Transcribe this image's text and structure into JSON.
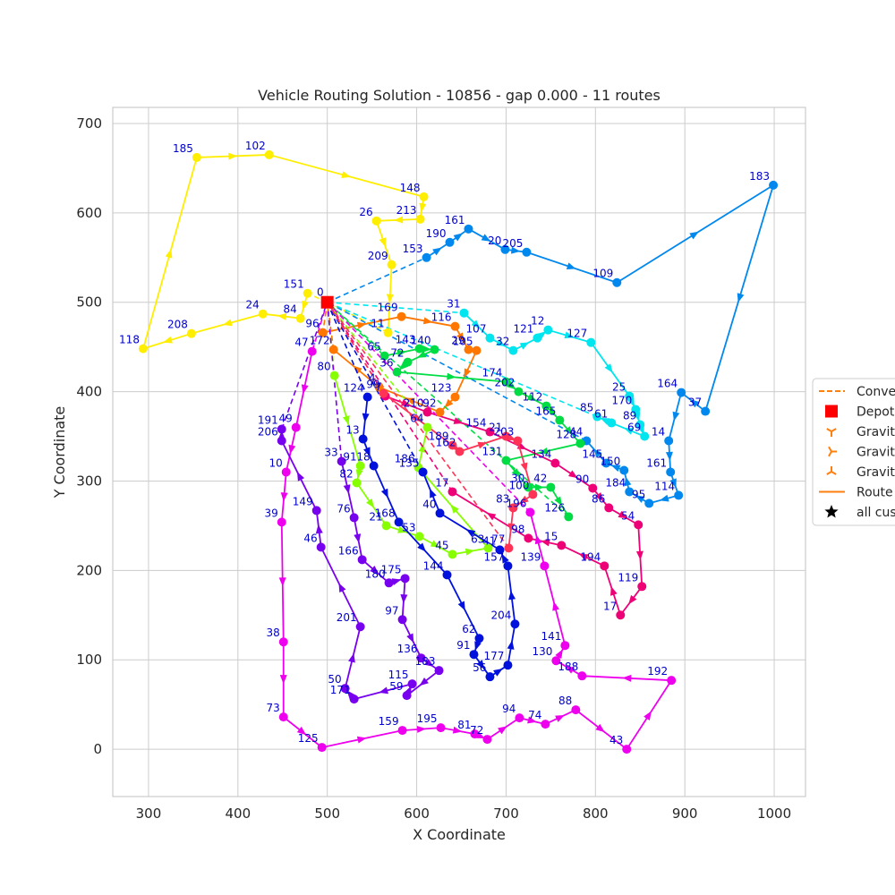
{
  "chart_data": {
    "type": "scatter",
    "title": "Vehicle Routing Solution - 10856 - gap 0.000 - 11 routes",
    "xlabel": "X Coordinate",
    "ylabel": "Y Coordinate",
    "xlim": [
      260,
      1035
    ],
    "ylim": [
      -53,
      718
    ],
    "xticks": [
      300,
      400,
      500,
      600,
      700,
      800,
      900,
      1000
    ],
    "yticks": [
      0,
      100,
      200,
      300,
      400,
      500,
      600,
      700
    ],
    "grid": true,
    "legend_position": "right (clipped)",
    "legend": [
      {
        "label": "Conve",
        "kind": "dashed-line",
        "color": "#ff7f0e"
      },
      {
        "label": "Depot",
        "kind": "square",
        "color": "#ff0000"
      },
      {
        "label": "Gravit",
        "kind": "tri-down",
        "color": "#ff7f0e"
      },
      {
        "label": "Gravit",
        "kind": "tri-left",
        "color": "#ff7f0e"
      },
      {
        "label": "Gravit",
        "kind": "tri-up",
        "color": "#ff7f0e"
      },
      {
        "label": "Route",
        "kind": "line",
        "color": "#ff7f0e"
      },
      {
        "label": "all cus",
        "kind": "star",
        "color": "#000000"
      }
    ],
    "depot": {
      "label": "0",
      "x": 500,
      "y": 500
    },
    "routes": [
      {
        "color": "#ffee00",
        "stops": [
          {
            "id": "151",
            "x": 478,
            "y": 510
          },
          {
            "id": "84",
            "x": 470,
            "y": 482
          },
          {
            "id": "24",
            "x": 428,
            "y": 487
          },
          {
            "id": "208",
            "x": 348,
            "y": 465
          },
          {
            "id": "118",
            "x": 294,
            "y": 448
          },
          {
            "id": "185",
            "x": 354,
            "y": 662
          },
          {
            "id": "102",
            "x": 435,
            "y": 665
          },
          {
            "id": "148",
            "x": 608,
            "y": 618
          },
          {
            "id": "213",
            "x": 604,
            "y": 593
          },
          {
            "id": "26",
            "x": 555,
            "y": 591
          },
          {
            "id": "209",
            "x": 572,
            "y": 542
          },
          {
            "id": "11",
            "x": 568,
            "y": 466
          }
        ]
      },
      {
        "color": "#0088ee",
        "stops": [
          {
            "id": "153",
            "x": 611,
            "y": 550
          },
          {
            "id": "190",
            "x": 637,
            "y": 567
          },
          {
            "id": "161",
            "x": 658,
            "y": 582
          },
          {
            "id": "20",
            "x": 699,
            "y": 559
          },
          {
            "id": "205",
            "x": 723,
            "y": 556
          },
          {
            "id": "109",
            "x": 824,
            "y": 522
          },
          {
            "id": "183",
            "x": 999,
            "y": 631
          },
          {
            "id": "37",
            "x": 923,
            "y": 378
          },
          {
            "id": "164",
            "x": 896,
            "y": 399
          },
          {
            "id": "14",
            "x": 882,
            "y": 345
          },
          {
            "id": "161b",
            "x": 884,
            "y": 310
          },
          {
            "id": "114",
            "x": 893,
            "y": 284
          },
          {
            "id": "95",
            "x": 860,
            "y": 275
          },
          {
            "id": "184",
            "x": 838,
            "y": 288
          },
          {
            "id": "150",
            "x": 832,
            "y": 312
          },
          {
            "id": "145",
            "x": 812,
            "y": 320
          },
          {
            "id": "44",
            "x": 790,
            "y": 345
          }
        ]
      },
      {
        "color": "#00e5ee",
        "stops": [
          {
            "id": "31",
            "x": 653,
            "y": 488
          },
          {
            "id": "107",
            "x": 682,
            "y": 460
          },
          {
            "id": "32",
            "x": 708,
            "y": 446
          },
          {
            "id": "121",
            "x": 735,
            "y": 460
          },
          {
            "id": "12",
            "x": 747,
            "y": 469
          },
          {
            "id": "127",
            "x": 795,
            "y": 455
          },
          {
            "id": "25",
            "x": 838,
            "y": 395
          },
          {
            "id": "170",
            "x": 845,
            "y": 380
          },
          {
            "id": "89",
            "x": 850,
            "y": 363
          },
          {
            "id": "69",
            "x": 855,
            "y": 350
          },
          {
            "id": "61",
            "x": 818,
            "y": 365
          },
          {
            "id": "85",
            "x": 802,
            "y": 372
          }
        ]
      },
      {
        "color": "#ff7700",
        "stops": [
          {
            "id": "96",
            "x": 495,
            "y": 466
          },
          {
            "id": "169",
            "x": 583,
            "y": 484
          },
          {
            "id": "116",
            "x": 643,
            "y": 473
          },
          {
            "id": "29",
            "x": 658,
            "y": 447
          },
          {
            "id": "105",
            "x": 667,
            "y": 446
          },
          {
            "id": "123",
            "x": 643,
            "y": 394
          },
          {
            "id": "92",
            "x": 626,
            "y": 377
          },
          {
            "id": "4",
            "x": 558,
            "y": 405
          },
          {
            "id": "172",
            "x": 507,
            "y": 447
          }
        ]
      },
      {
        "color": "#00dd44",
        "stops": [
          {
            "id": "65",
            "x": 564,
            "y": 440
          },
          {
            "id": "143",
            "x": 603,
            "y": 448
          },
          {
            "id": "140",
            "x": 620,
            "y": 447
          },
          {
            "id": "72",
            "x": 590,
            "y": 433
          },
          {
            "id": "36",
            "x": 578,
            "y": 422
          },
          {
            "id": "174",
            "x": 700,
            "y": 411
          },
          {
            "id": "202",
            "x": 714,
            "y": 400
          },
          {
            "id": "112",
            "x": 745,
            "y": 384
          },
          {
            "id": "165",
            "x": 760,
            "y": 368
          },
          {
            "id": "128",
            "x": 783,
            "y": 342
          },
          {
            "id": "131",
            "x": 700,
            "y": 323
          },
          {
            "id": "30",
            "x": 725,
            "y": 293
          },
          {
            "id": "42",
            "x": 750,
            "y": 293
          },
          {
            "id": "126",
            "x": 770,
            "y": 260
          }
        ]
      },
      {
        "color": "#88ff00",
        "stops": [
          {
            "id": "80",
            "x": 508,
            "y": 418
          },
          {
            "id": "91",
            "x": 537,
            "y": 317
          },
          {
            "id": "82",
            "x": 533,
            "y": 298
          },
          {
            "id": "21",
            "x": 566,
            "y": 250
          },
          {
            "id": "53",
            "x": 603,
            "y": 238
          },
          {
            "id": "45",
            "x": 640,
            "y": 218
          },
          {
            "id": "63",
            "x": 680,
            "y": 225
          },
          {
            "id": "186",
            "x": 602,
            "y": 315
          },
          {
            "id": "64",
            "x": 612,
            "y": 360
          }
        ]
      },
      {
        "color": "#0011dd",
        "stops": [
          {
            "id": "124",
            "x": 545,
            "y": 394
          },
          {
            "id": "13",
            "x": 540,
            "y": 347
          },
          {
            "id": "18",
            "x": 552,
            "y": 317
          },
          {
            "id": "168",
            "x": 580,
            "y": 254
          },
          {
            "id": "144",
            "x": 634,
            "y": 195
          },
          {
            "id": "62",
            "x": 670,
            "y": 124
          },
          {
            "id": "91b",
            "x": 664,
            "y": 106
          },
          {
            "id": "56",
            "x": 682,
            "y": 81
          },
          {
            "id": "177",
            "x": 702,
            "y": 94
          },
          {
            "id": "204",
            "x": 710,
            "y": 140
          },
          {
            "id": "157",
            "x": 702,
            "y": 205
          },
          {
            "id": "41",
            "x": 693,
            "y": 223
          },
          {
            "id": "40",
            "x": 626,
            "y": 264
          },
          {
            "id": "135",
            "x": 607,
            "y": 310
          }
        ]
      },
      {
        "color": "#ee0077",
        "stops": [
          {
            "id": "7",
            "x": 565,
            "y": 395
          },
          {
            "id": "210",
            "x": 612,
            "y": 377
          },
          {
            "id": "154",
            "x": 682,
            "y": 355
          },
          {
            "id": "134",
            "x": 755,
            "y": 320
          },
          {
            "id": "90",
            "x": 797,
            "y": 292
          },
          {
            "id": "86",
            "x": 815,
            "y": 270
          },
          {
            "id": "54",
            "x": 848,
            "y": 251
          },
          {
            "id": "119",
            "x": 852,
            "y": 182
          },
          {
            "id": "17",
            "x": 828,
            "y": 150
          },
          {
            "id": "194",
            "x": 810,
            "y": 205
          },
          {
            "id": "15",
            "x": 762,
            "y": 228
          },
          {
            "id": "98",
            "x": 725,
            "y": 236
          },
          {
            "id": "17b",
            "x": 640,
            "y": 288
          }
        ]
      },
      {
        "color": "#ee00ee",
        "stops": [
          {
            "id": "47",
            "x": 483,
            "y": 445
          },
          {
            "id": "49",
            "x": 465,
            "y": 360
          },
          {
            "id": "10",
            "x": 454,
            "y": 310
          },
          {
            "id": "39",
            "x": 449,
            "y": 254
          },
          {
            "id": "38",
            "x": 451,
            "y": 120
          },
          {
            "id": "73",
            "x": 451,
            "y": 36
          },
          {
            "id": "125",
            "x": 494,
            "y": 2
          },
          {
            "id": "159",
            "x": 584,
            "y": 21
          },
          {
            "id": "195",
            "x": 627,
            "y": 24
          },
          {
            "id": "81",
            "x": 665,
            "y": 17
          },
          {
            "id": "72b",
            "x": 679,
            "y": 11
          },
          {
            "id": "94",
            "x": 715,
            "y": 35
          },
          {
            "id": "74",
            "x": 744,
            "y": 28
          },
          {
            "id": "88",
            "x": 778,
            "y": 44
          },
          {
            "id": "43",
            "x": 835,
            "y": 0
          },
          {
            "id": "192",
            "x": 885,
            "y": 77
          },
          {
            "id": "188",
            "x": 785,
            "y": 82
          },
          {
            "id": "130",
            "x": 756,
            "y": 99
          },
          {
            "id": "141",
            "x": 766,
            "y": 116
          },
          {
            "id": "139",
            "x": 743,
            "y": 205
          },
          {
            "id": "196",
            "x": 727,
            "y": 265
          }
        ]
      },
      {
        "color": "#7700ee",
        "stops": [
          {
            "id": "33",
            "x": 516,
            "y": 322
          },
          {
            "id": "76",
            "x": 530,
            "y": 259
          },
          {
            "id": "166",
            "x": 539,
            "y": 212
          },
          {
            "id": "180",
            "x": 569,
            "y": 186
          },
          {
            "id": "175",
            "x": 587,
            "y": 191
          },
          {
            "id": "97",
            "x": 584,
            "y": 145
          },
          {
            "id": "136",
            "x": 605,
            "y": 102
          },
          {
            "id": "183b",
            "x": 625,
            "y": 88
          },
          {
            "id": "59",
            "x": 589,
            "y": 60
          },
          {
            "id": "115",
            "x": 595,
            "y": 73
          },
          {
            "id": "171",
            "x": 530,
            "y": 56
          },
          {
            "id": "50",
            "x": 520,
            "y": 68
          },
          {
            "id": "201",
            "x": 537,
            "y": 137
          },
          {
            "id": "46",
            "x": 493,
            "y": 226
          },
          {
            "id": "149",
            "x": 488,
            "y": 267
          },
          {
            "id": "206",
            "x": 449,
            "y": 345
          },
          {
            "id": "191",
            "x": 449,
            "y": 358
          }
        ]
      },
      {
        "color": "#ff3355",
        "stops": [
          {
            "id": "99",
            "x": 563,
            "y": 398
          },
          {
            "id": "189",
            "x": 640,
            "y": 340
          },
          {
            "id": "162",
            "x": 648,
            "y": 333
          },
          {
            "id": "21b",
            "x": 700,
            "y": 350
          },
          {
            "id": "203",
            "x": 713,
            "y": 345
          },
          {
            "id": "100",
            "x": 730,
            "y": 285
          },
          {
            "id": "83",
            "x": 708,
            "y": 270
          },
          {
            "id": "77",
            "x": 703,
            "y": 225
          }
        ]
      }
    ]
  }
}
